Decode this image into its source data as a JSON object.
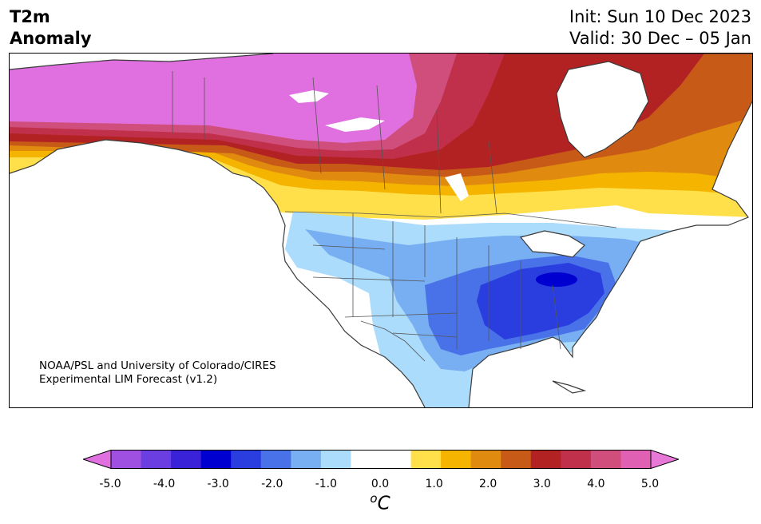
{
  "title": {
    "line1": "T2m",
    "line2": "Anomaly"
  },
  "dates": {
    "init": "Init: Sun 10 Dec 2023",
    "valid": "Valid: 30 Dec – 05 Jan"
  },
  "credit": {
    "line1": "NOAA/PSL and University of Colorado/CIRES",
    "line2": "Experimental LIM Forecast (v1.2)"
  },
  "colorbar": {
    "colors": [
      "#e070e0",
      "#a050e0",
      "#6a3ee0",
      "#3a22d8",
      "#0000d0",
      "#2a3ee0",
      "#4a72e8",
      "#78aef2",
      "#acdcfc",
      "#ffffff",
      "#ffffff",
      "#ffe04a",
      "#f4b400",
      "#e08a10",
      "#c85a18",
      "#b22222",
      "#c0304a",
      "#d04e7c",
      "#e060b4",
      "#e878d8"
    ],
    "tick_labels": [
      "-5.0",
      "-4.0",
      "-3.0",
      "-2.0",
      "-1.0",
      "0.0",
      "1.0",
      "2.0",
      "3.0",
      "4.0",
      "5.0"
    ],
    "unit_base": "o",
    "unit": "C"
  }
}
